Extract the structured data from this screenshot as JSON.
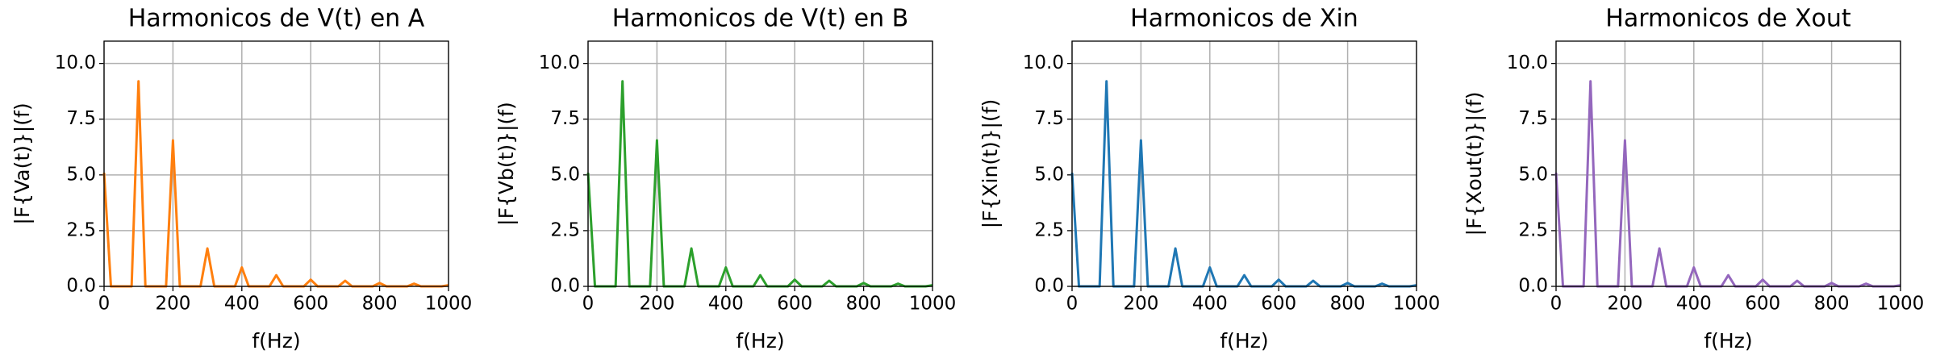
{
  "chart_data": [
    {
      "type": "line",
      "title": "Harmonicos de V(t) en A",
      "xlabel": "f(Hz)",
      "ylabel": "|F{Va(t)}|(f)",
      "x": [
        0,
        20,
        40,
        60,
        80,
        100,
        120,
        140,
        160,
        180,
        200,
        220,
        240,
        260,
        280,
        300,
        320,
        340,
        360,
        380,
        400,
        420,
        440,
        460,
        480,
        500,
        520,
        540,
        560,
        580,
        600,
        620,
        640,
        660,
        680,
        700,
        720,
        740,
        760,
        780,
        800,
        820,
        840,
        860,
        880,
        900,
        920,
        940,
        960,
        980,
        1000
      ],
      "series": [
        {
          "color": "#ff7f0e",
          "values": [
            5.1,
            0,
            0,
            0,
            0,
            9.2,
            0,
            0,
            0,
            0,
            6.55,
            0,
            0,
            0,
            0,
            1.7,
            0,
            0,
            0,
            0,
            0.85,
            0,
            0,
            0,
            0,
            0.5,
            0,
            0,
            0,
            0,
            0.3,
            0,
            0,
            0,
            0,
            0.25,
            0,
            0,
            0,
            0,
            0.15,
            0,
            0,
            0,
            0,
            0.12,
            0,
            0,
            0,
            0,
            0.05
          ]
        }
      ],
      "xlim": [
        0,
        1000
      ],
      "xticks": [
        0,
        200,
        400,
        600,
        800,
        1000
      ],
      "ylim": [
        0,
        11
      ],
      "yticks": [
        {
          "value": 0,
          "label": "0.0"
        },
        2.5,
        {
          "value": 5,
          "label": "5.0"
        },
        7.5,
        {
          "value": 10,
          "label": "10.0"
        }
      ],
      "grid": true
    },
    {
      "type": "line",
      "title": "Harmonicos de V(t) en B",
      "xlabel": "f(Hz)",
      "ylabel": "|F{Vb(t)}|(f)",
      "x": [
        0,
        20,
        40,
        60,
        80,
        100,
        120,
        140,
        160,
        180,
        200,
        220,
        240,
        260,
        280,
        300,
        320,
        340,
        360,
        380,
        400,
        420,
        440,
        460,
        480,
        500,
        520,
        540,
        560,
        580,
        600,
        620,
        640,
        660,
        680,
        700,
        720,
        740,
        760,
        780,
        800,
        820,
        840,
        860,
        880,
        900,
        920,
        940,
        960,
        980,
        1000
      ],
      "series": [
        {
          "color": "#2ca02c",
          "values": [
            5.1,
            0,
            0,
            0,
            0,
            9.2,
            0,
            0,
            0,
            0,
            6.55,
            0,
            0,
            0,
            0,
            1.7,
            0,
            0,
            0,
            0,
            0.85,
            0,
            0,
            0,
            0,
            0.5,
            0,
            0,
            0,
            0,
            0.3,
            0,
            0,
            0,
            0,
            0.25,
            0,
            0,
            0,
            0,
            0.15,
            0,
            0,
            0,
            0,
            0.12,
            0,
            0,
            0,
            0,
            0.05
          ]
        }
      ],
      "xlim": [
        0,
        1000
      ],
      "xticks": [
        0,
        200,
        400,
        600,
        800,
        1000
      ],
      "ylim": [
        0,
        11
      ],
      "yticks": [
        {
          "value": 0,
          "label": "0.0"
        },
        2.5,
        {
          "value": 5,
          "label": "5.0"
        },
        7.5,
        {
          "value": 10,
          "label": "10.0"
        }
      ],
      "grid": true
    },
    {
      "type": "line",
      "title": "Harmonicos de Xin",
      "xlabel": "f(Hz)",
      "ylabel": "|F{Xin(t)}|(f)",
      "x": [
        0,
        20,
        40,
        60,
        80,
        100,
        120,
        140,
        160,
        180,
        200,
        220,
        240,
        260,
        280,
        300,
        320,
        340,
        360,
        380,
        400,
        420,
        440,
        460,
        480,
        500,
        520,
        540,
        560,
        580,
        600,
        620,
        640,
        660,
        680,
        700,
        720,
        740,
        760,
        780,
        800,
        820,
        840,
        860,
        880,
        900,
        920,
        940,
        960,
        980,
        1000
      ],
      "series": [
        {
          "color": "#1f77b4",
          "values": [
            5.1,
            0,
            0,
            0,
            0,
            9.2,
            0,
            0,
            0,
            0,
            6.55,
            0,
            0,
            0,
            0,
            1.7,
            0,
            0,
            0,
            0,
            0.85,
            0,
            0,
            0,
            0,
            0.5,
            0,
            0,
            0,
            0,
            0.3,
            0,
            0,
            0,
            0,
            0.25,
            0,
            0,
            0,
            0,
            0.15,
            0,
            0,
            0,
            0,
            0.12,
            0,
            0,
            0,
            0,
            0.05
          ]
        }
      ],
      "xlim": [
        0,
        1000
      ],
      "xticks": [
        0,
        200,
        400,
        600,
        800,
        1000
      ],
      "ylim": [
        0,
        11
      ],
      "yticks": [
        {
          "value": 0,
          "label": "0.0"
        },
        2.5,
        {
          "value": 5,
          "label": "5.0"
        },
        7.5,
        {
          "value": 10,
          "label": "10.0"
        }
      ],
      "grid": true
    },
    {
      "type": "line",
      "title": "Harmonicos de Xout",
      "xlabel": "f(Hz)",
      "ylabel": "|F{Xout(t)}|(f)",
      "x": [
        0,
        20,
        40,
        60,
        80,
        100,
        120,
        140,
        160,
        180,
        200,
        220,
        240,
        260,
        280,
        300,
        320,
        340,
        360,
        380,
        400,
        420,
        440,
        460,
        480,
        500,
        520,
        540,
        560,
        580,
        600,
        620,
        640,
        660,
        680,
        700,
        720,
        740,
        760,
        780,
        800,
        820,
        840,
        860,
        880,
        900,
        920,
        940,
        960,
        980,
        1000
      ],
      "series": [
        {
          "color": "#9467bd",
          "values": [
            5.1,
            0,
            0,
            0,
            0,
            9.2,
            0,
            0,
            0,
            0,
            6.55,
            0,
            0,
            0,
            0,
            1.7,
            0,
            0,
            0,
            0,
            0.85,
            0,
            0,
            0,
            0,
            0.5,
            0,
            0,
            0,
            0,
            0.3,
            0,
            0,
            0,
            0,
            0.25,
            0,
            0,
            0,
            0,
            0.15,
            0,
            0,
            0,
            0,
            0.12,
            0,
            0,
            0,
            0,
            0.05
          ]
        }
      ],
      "xlim": [
        0,
        1000
      ],
      "xticks": [
        0,
        200,
        400,
        600,
        800,
        1000
      ],
      "ylim": [
        0,
        11
      ],
      "yticks": [
        {
          "value": 0,
          "label": "0.0"
        },
        2.5,
        {
          "value": 5,
          "label": "5.0"
        },
        7.5,
        {
          "value": 10,
          "label": "10.0"
        }
      ],
      "grid": true
    }
  ]
}
